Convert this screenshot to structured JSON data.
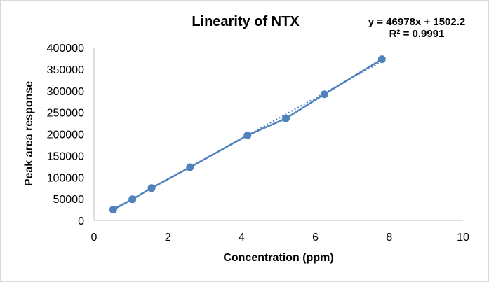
{
  "chart_data": {
    "type": "scatter",
    "title": "Linearity of NTX",
    "xlabel": "Concentration (ppm)",
    "ylabel": "Peak area response",
    "xlim": [
      0,
      10
    ],
    "ylim": [
      0,
      400000
    ],
    "x_ticks": [
      0,
      2,
      4,
      6,
      8,
      10
    ],
    "y_ticks": [
      0,
      50000,
      100000,
      150000,
      200000,
      250000,
      300000,
      350000,
      400000
    ],
    "x_tick_labels": [
      "0",
      "2",
      "4",
      "6",
      "8",
      "10"
    ],
    "y_tick_labels": [
      "0",
      "50000",
      "100000",
      "150000",
      "200000",
      "250000",
      "300000",
      "350000",
      "400000"
    ],
    "grid": false,
    "series": [
      {
        "x": [
          0.52,
          1.04,
          1.56,
          2.6,
          4.16,
          5.2,
          6.24,
          7.8
        ],
        "y": [
          25000,
          49000,
          75000,
          123000,
          197000,
          236000,
          292000,
          373000
        ],
        "color": "#4f81bd",
        "style": "line-with-markers"
      }
    ],
    "trendline": {
      "style": "dotted",
      "color": "#4f81bd",
      "slope": 46978,
      "intercept": 1502.2
    },
    "equation": "y = 46978x + 1502.2",
    "r_squared": "R² = 0.9991"
  }
}
